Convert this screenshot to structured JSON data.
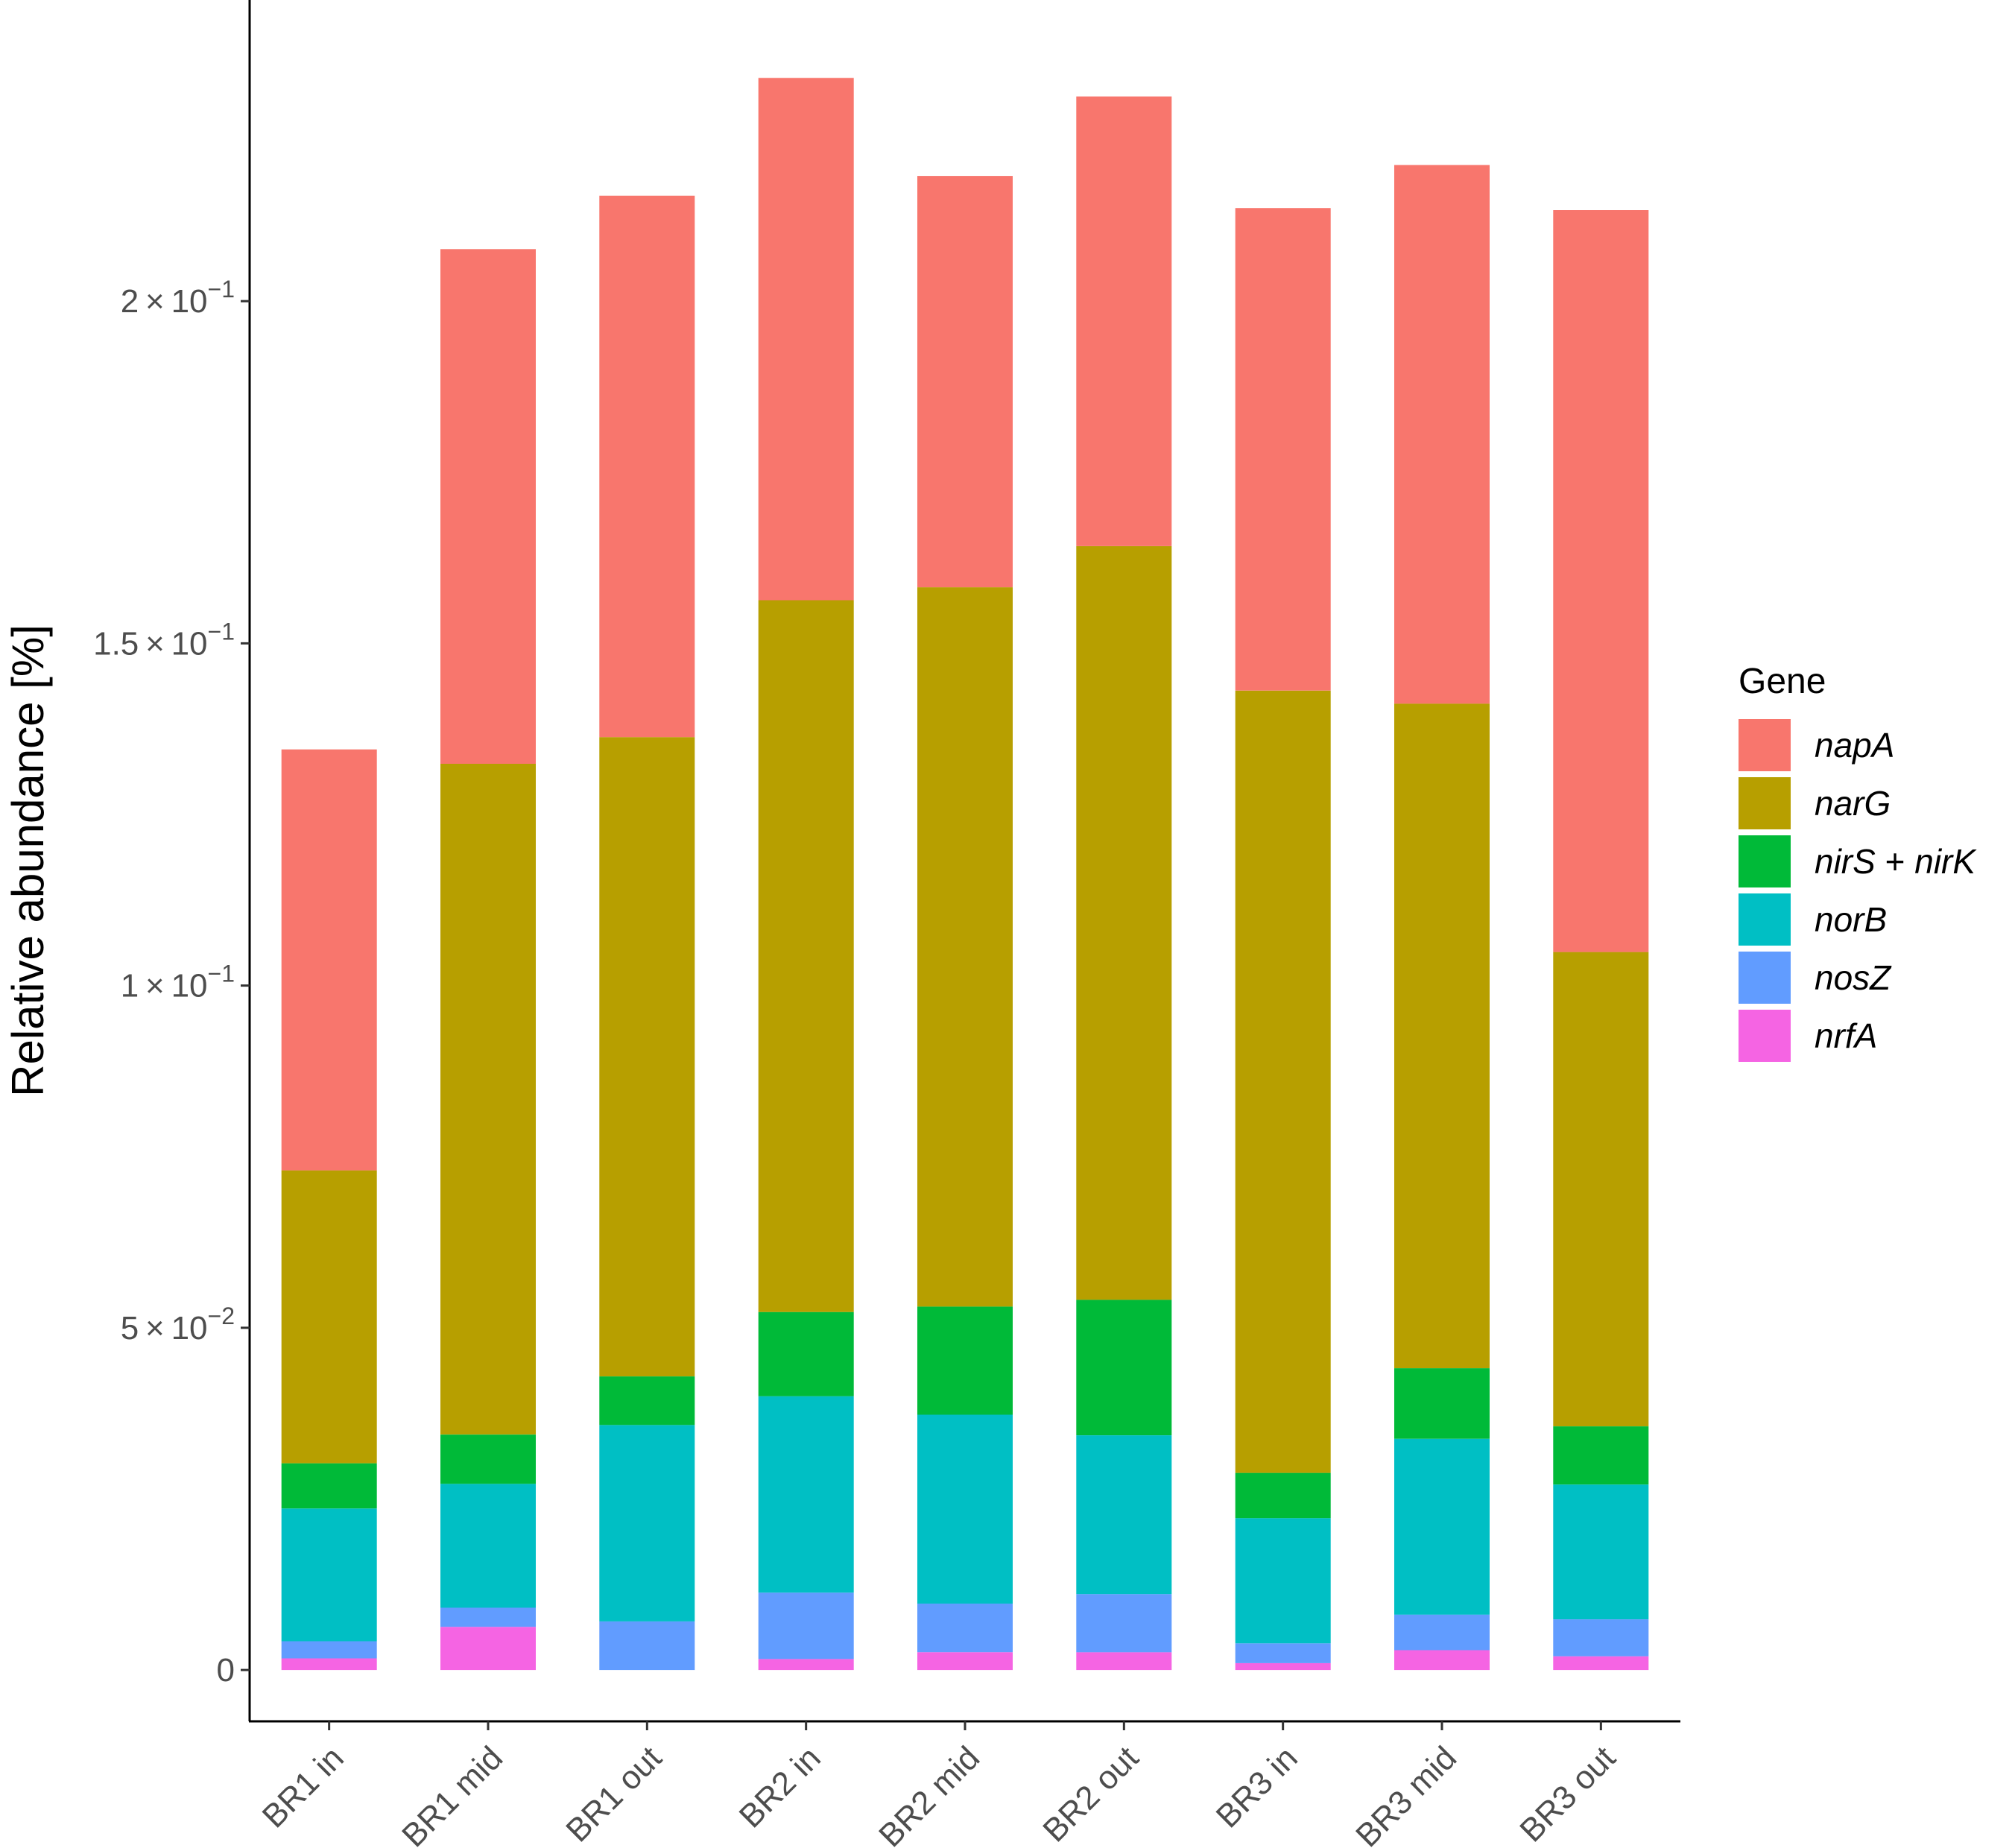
{
  "chart_data": {
    "type": "bar",
    "stacked": true,
    "title": "",
    "xlabel": "",
    "ylabel": "Relative abundance [%]",
    "ylim": [
      -0.0075,
      0.244
    ],
    "y_ticks": [
      {
        "value": 0,
        "mant": "0",
        "exp": ""
      },
      {
        "value": 0.05,
        "mant": "5 × 10",
        "exp": "−2"
      },
      {
        "value": 0.1,
        "mant": "1 × 10",
        "exp": "−1"
      },
      {
        "value": 0.15,
        "mant": "1.5 × 10",
        "exp": "−1"
      },
      {
        "value": 0.2,
        "mant": "2 × 10",
        "exp": "−1"
      }
    ],
    "categories": [
      "BR1 in",
      "BR1 mid",
      "BR1 out",
      "BR2 in",
      "BR2 mid",
      "BR2 out",
      "BR3 in",
      "BR3 mid",
      "BR3 out"
    ],
    "legend_title": "Gene",
    "legend_position": "right",
    "series": [
      {
        "name": "nrfA",
        "color": "#F564E3",
        "values": [
          0.0017,
          0.0063,
          0.0,
          0.0016,
          0.0026,
          0.0026,
          0.001,
          0.0029,
          0.002
        ]
      },
      {
        "name": "nosZ",
        "color": "#619CFF",
        "values": [
          0.0025,
          0.0028,
          0.0071,
          0.0097,
          0.0071,
          0.0085,
          0.0029,
          0.0052,
          0.0054
        ]
      },
      {
        "name": "norB",
        "color": "#00BFC4",
        "values": [
          0.0194,
          0.0181,
          0.0287,
          0.0287,
          0.0276,
          0.0232,
          0.0183,
          0.0257,
          0.0197
        ]
      },
      {
        "name": "nirS + nirK",
        "color": "#00BA38",
        "values": [
          0.0066,
          0.0072,
          0.0071,
          0.0123,
          0.0158,
          0.0198,
          0.0066,
          0.0103,
          0.0085
        ]
      },
      {
        "name": "narG",
        "color": "#B79F00",
        "values": [
          0.0428,
          0.098,
          0.0934,
          0.104,
          0.1051,
          0.1101,
          0.1143,
          0.0971,
          0.0693
        ]
      },
      {
        "name": "napA",
        "color": "#F8766D",
        "values": [
          0.0615,
          0.0752,
          0.0791,
          0.0763,
          0.0601,
          0.0657,
          0.0705,
          0.0787,
          0.1084
        ]
      }
    ],
    "legend_order": [
      {
        "name": "napA",
        "parts": [
          "napA"
        ]
      },
      {
        "name": "narG",
        "parts": [
          "narG"
        ]
      },
      {
        "name": "nirS + nirK",
        "parts": [
          "nirS",
          " + ",
          "nirK"
        ]
      },
      {
        "name": "norB",
        "parts": [
          "norB"
        ]
      },
      {
        "name": "nosZ",
        "parts": [
          "nosZ"
        ]
      },
      {
        "name": "nrfA",
        "parts": [
          "nrfA"
        ]
      }
    ]
  }
}
